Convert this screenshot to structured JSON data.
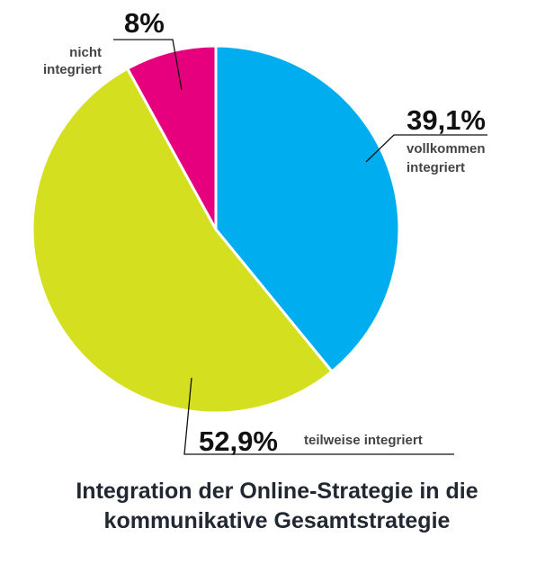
{
  "chart_data": {
    "type": "pie",
    "start_angle_deg": 0,
    "direction": "clockwise",
    "slices": [
      {
        "value": 39.1,
        "label": "39,1%",
        "desc_lines": [
          "vollkommen",
          "integriert"
        ],
        "color": "#00aeef"
      },
      {
        "value": 52.9,
        "label": "52,9%",
        "desc_lines": [
          "teilweise integriert"
        ],
        "color": "#d4df1f"
      },
      {
        "value": 8.0,
        "label": "8%",
        "desc_lines": [
          "nicht",
          "integriert"
        ],
        "color": "#e6007e"
      }
    ],
    "title_lines": [
      "Integration der Online-Strategie in die",
      "kommunikative Gesamtstrategie"
    ]
  }
}
